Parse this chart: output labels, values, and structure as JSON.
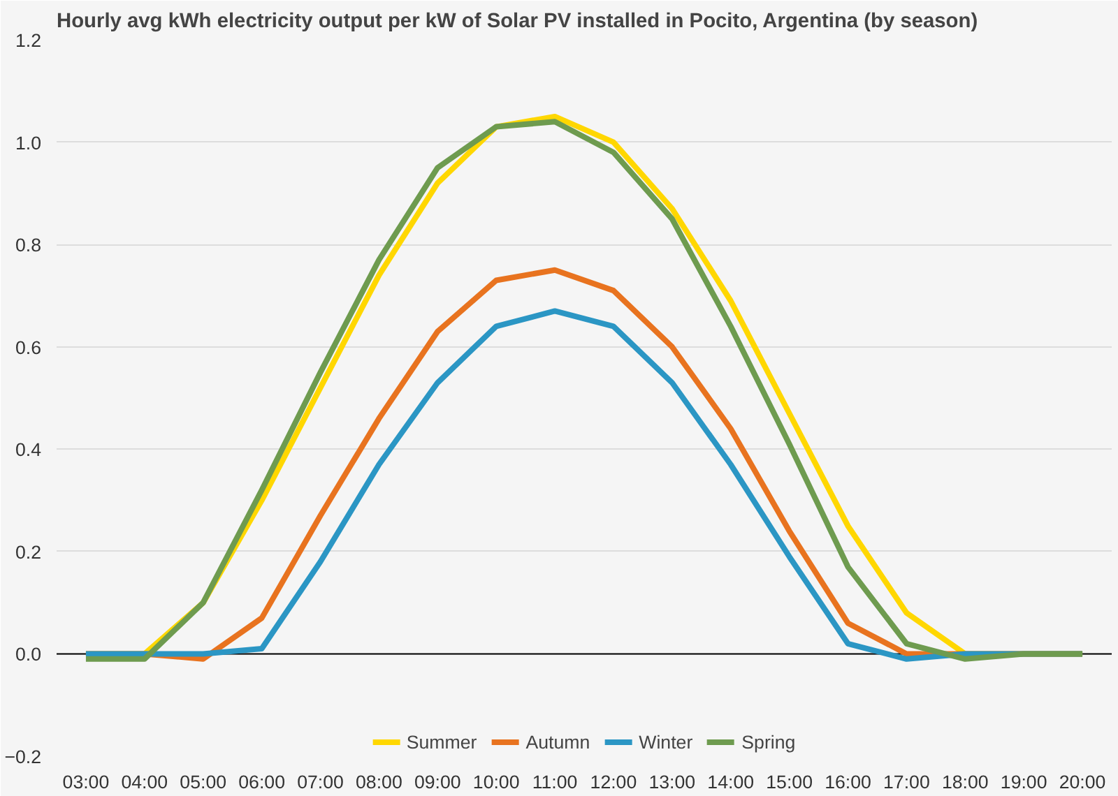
{
  "chart_data": {
    "type": "line",
    "title": "Hourly avg kWh electricity output per kW of Solar PV installed in Pocito, Argentina (by season)",
    "categories": [
      "03:00",
      "04:00",
      "05:00",
      "06:00",
      "07:00",
      "08:00",
      "09:00",
      "10:00",
      "11:00",
      "12:00",
      "13:00",
      "14:00",
      "15:00",
      "16:00",
      "17:00",
      "18:00",
      "19:00",
      "20:00"
    ],
    "series": [
      {
        "name": "Summer",
        "color": "#ffd700",
        "values": [
          0,
          0,
          0.1,
          0.3,
          0.52,
          0.74,
          0.92,
          1.03,
          1.05,
          1.0,
          0.87,
          0.69,
          0.47,
          0.25,
          0.08,
          0,
          0,
          0
        ]
      },
      {
        "name": "Autumn",
        "color": "#e8731f",
        "values": [
          0,
          0,
          -0.01,
          0.07,
          0.27,
          0.46,
          0.63,
          0.73,
          0.75,
          0.71,
          0.6,
          0.44,
          0.24,
          0.06,
          0,
          0,
          0,
          0
        ]
      },
      {
        "name": "Winter",
        "color": "#2b96c4",
        "values": [
          0,
          0,
          0,
          0.01,
          0.18,
          0.37,
          0.53,
          0.64,
          0.67,
          0.64,
          0.53,
          0.37,
          0.19,
          0.02,
          -0.01,
          0,
          0,
          0
        ]
      },
      {
        "name": "Spring",
        "color": "#6e9b4f",
        "values": [
          -0.01,
          -0.01,
          0.1,
          0.32,
          0.55,
          0.77,
          0.95,
          1.03,
          1.04,
          0.98,
          0.85,
          0.64,
          0.41,
          0.17,
          0.02,
          -0.01,
          0,
          0
        ]
      }
    ],
    "ylim": [
      -0.2,
      1.2
    ],
    "yticks": [
      -0.2,
      {
        "value": 0,
        "label": "0.0"
      },
      0.2,
      0.4,
      0.6,
      0.8,
      {
        "value": 1,
        "label": "1.0"
      },
      1.2
    ],
    "ref_lines": [
      {
        "axis": "y",
        "value": 0,
        "color": "#000000"
      }
    ],
    "grid": "y",
    "legend": "bottom",
    "marker": "none",
    "line_style": "solid"
  }
}
